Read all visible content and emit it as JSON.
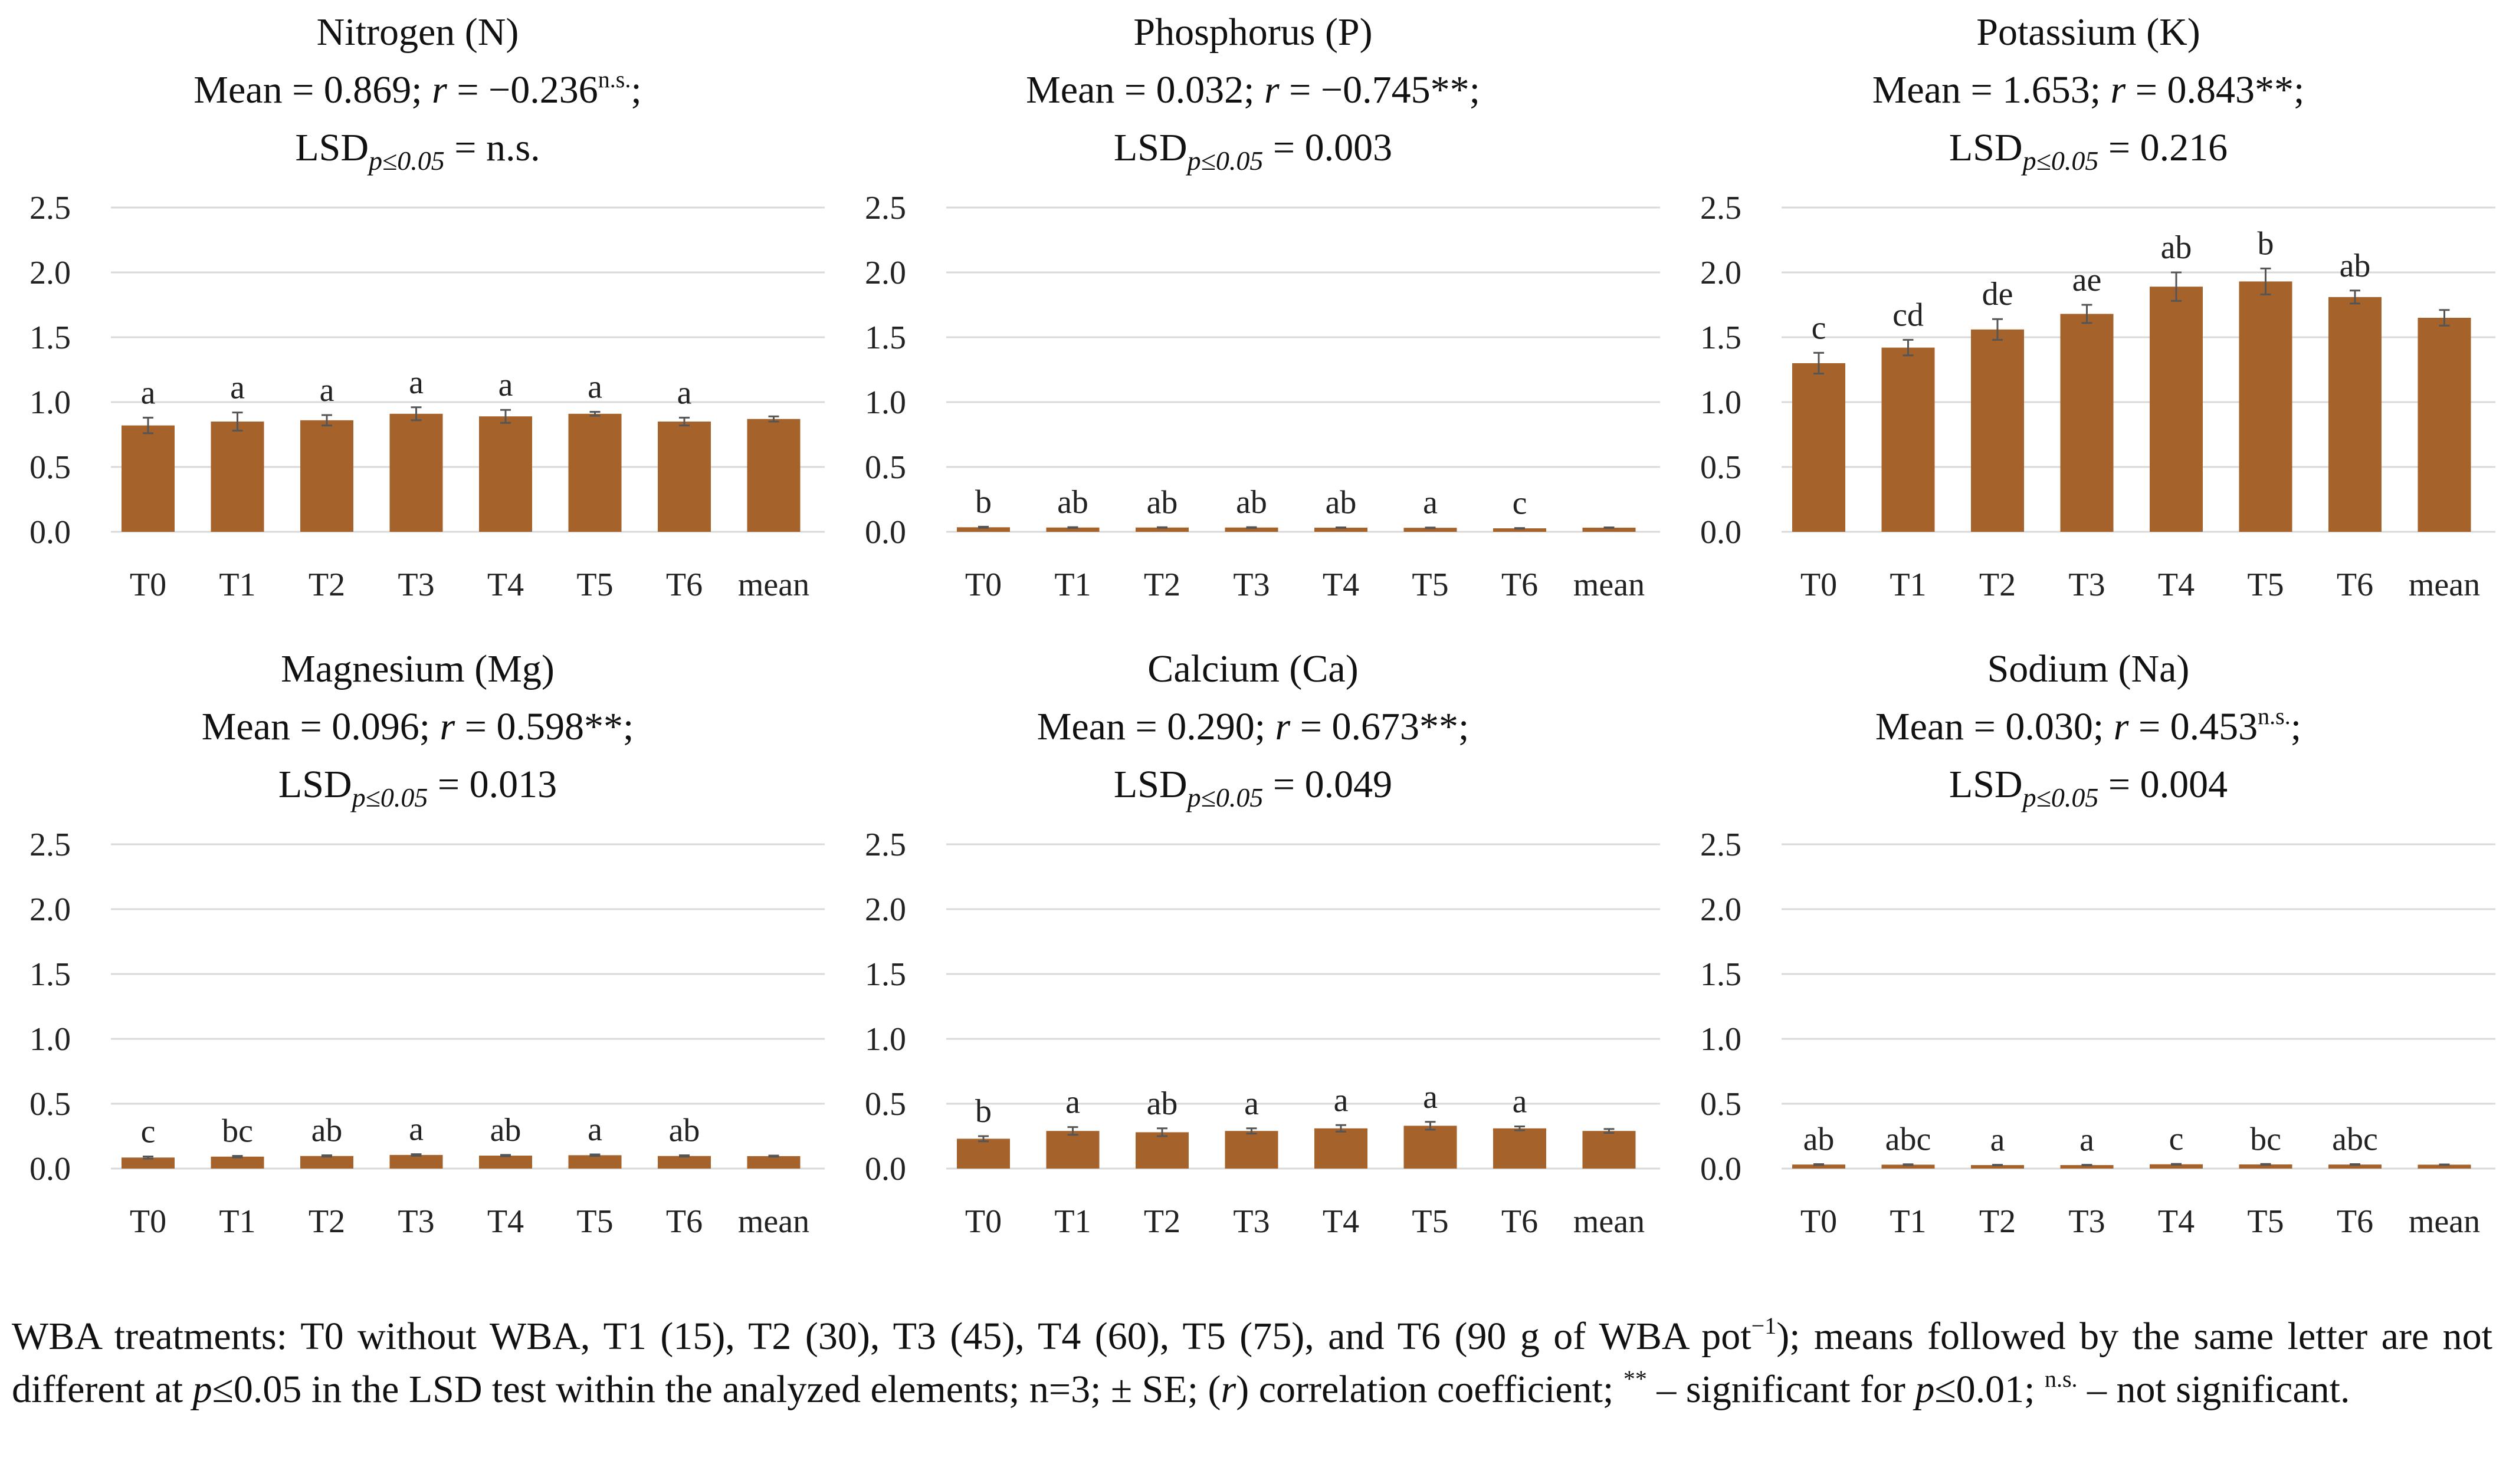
{
  "colors": {
    "bar": "#A5622A",
    "grid": "#d9d9d9",
    "error": "#555555"
  },
  "chart_data": [
    {
      "type": "bar",
      "title": "Nitrogen (N)",
      "mean_label": "Mean = 0.869;",
      "r_label": "r",
      "r_value": "= −0.236",
      "r_sup": "n.s.",
      "r_end": ";",
      "lsd_label": "LSD",
      "lsd_sub": "p≤0.05",
      "lsd_value": "= n.s.",
      "categories": [
        "T0",
        "T1",
        "T2",
        "T3",
        "T4",
        "T5",
        "T6",
        "mean"
      ],
      "values": [
        0.82,
        0.85,
        0.86,
        0.91,
        0.89,
        0.91,
        0.85,
        0.87
      ],
      "errors": [
        0.06,
        0.07,
        0.04,
        0.05,
        0.05,
        0.015,
        0.03,
        0.02
      ],
      "letters": [
        "a",
        "a",
        "a",
        "a",
        "a",
        "a",
        "a",
        ""
      ],
      "ylim": [
        0,
        2.5
      ],
      "yticks": [
        "0.0",
        "0.5",
        "1.0",
        "1.5",
        "2.0",
        "2.5"
      ]
    },
    {
      "type": "bar",
      "title": "Phosphorus (P)",
      "mean_label": "Mean = 0.032;",
      "r_label": "r",
      "r_value": "= −0.745**;",
      "r_sup": "",
      "r_end": "",
      "lsd_label": "LSD",
      "lsd_sub": "p≤0.05",
      "lsd_value": "= 0.003",
      "categories": [
        "T0",
        "T1",
        "T2",
        "T3",
        "T4",
        "T5",
        "T6",
        "mean"
      ],
      "values": [
        0.035,
        0.033,
        0.033,
        0.033,
        0.032,
        0.031,
        0.027,
        0.032
      ],
      "errors": [
        0.004,
        0.003,
        0.002,
        0.003,
        0.002,
        0.002,
        0.002,
        0.002
      ],
      "letters": [
        "b",
        "ab",
        "ab",
        "ab",
        "ab",
        "a",
        "c",
        ""
      ],
      "ylim": [
        0,
        2.5
      ],
      "yticks": [
        "0.0",
        "0.5",
        "1.0",
        "1.5",
        "2.0",
        "2.5"
      ]
    },
    {
      "type": "bar",
      "title": "Potassium (K)",
      "mean_label": "Mean = 1.653;",
      "r_label": "r",
      "r_value": "= 0.843**;",
      "r_sup": "",
      "r_end": "",
      "lsd_label": "LSD",
      "lsd_sub": "p≤0.05",
      "lsd_value": "= 0.216",
      "categories": [
        "T0",
        "T1",
        "T2",
        "T3",
        "T4",
        "T5",
        "T6",
        "mean"
      ],
      "values": [
        1.3,
        1.42,
        1.56,
        1.68,
        1.89,
        1.93,
        1.81,
        1.65
      ],
      "errors": [
        0.08,
        0.06,
        0.08,
        0.07,
        0.11,
        0.1,
        0.05,
        0.06
      ],
      "letters": [
        "c",
        "cd",
        "de",
        "ae",
        "ab",
        "b",
        "ab",
        ""
      ],
      "ylim": [
        0,
        2.5
      ],
      "yticks": [
        "0.0",
        "0.5",
        "1.0",
        "1.5",
        "2.0",
        "2.5"
      ]
    },
    {
      "type": "bar",
      "title": "Magnesium (Mg)",
      "mean_label": "Mean = 0.096;",
      "r_label": "r",
      "r_value": "= 0.598**;",
      "r_sup": "",
      "r_end": "",
      "lsd_label": "LSD",
      "lsd_sub": "p≤0.05",
      "lsd_value": "= 0.013",
      "categories": [
        "T0",
        "T1",
        "T2",
        "T3",
        "T4",
        "T5",
        "T6",
        "mean"
      ],
      "values": [
        0.085,
        0.092,
        0.097,
        0.105,
        0.1,
        0.103,
        0.097,
        0.096
      ],
      "errors": [
        0.008,
        0.006,
        0.005,
        0.006,
        0.005,
        0.006,
        0.005,
        0.004
      ],
      "letters": [
        "c",
        "bc",
        "ab",
        "a",
        "ab",
        "a",
        "ab",
        ""
      ],
      "ylim": [
        0,
        2.5
      ],
      "yticks": [
        "0.0",
        "0.5",
        "1.0",
        "1.5",
        "2.0",
        "2.5"
      ]
    },
    {
      "type": "bar",
      "title": "Calcium (Ca)",
      "mean_label": "Mean = 0.290;",
      "r_label": "r",
      "r_value": "= 0.673**;",
      "r_sup": "",
      "r_end": "",
      "lsd_label": "LSD",
      "lsd_sub": "p≤0.05",
      "lsd_value": "= 0.049",
      "categories": [
        "T0",
        "T1",
        "T2",
        "T3",
        "T4",
        "T5",
        "T6",
        "mean"
      ],
      "values": [
        0.23,
        0.29,
        0.28,
        0.29,
        0.31,
        0.33,
        0.31,
        0.29
      ],
      "errors": [
        0.02,
        0.03,
        0.03,
        0.02,
        0.025,
        0.03,
        0.015,
        0.015
      ],
      "letters": [
        "b",
        "a",
        "ab",
        "a",
        "a",
        "a",
        "a",
        ""
      ],
      "ylim": [
        0,
        2.5
      ],
      "yticks": [
        "0.0",
        "0.5",
        "1.0",
        "1.5",
        "2.0",
        "2.5"
      ]
    },
    {
      "type": "bar",
      "title": "Sodium (Na)",
      "mean_label": "Mean = 0.030;",
      "r_label": "r",
      "r_value": "= 0.453",
      "r_sup": "n.s.",
      "r_end": ";",
      "lsd_label": "LSD",
      "lsd_sub": "p≤0.05",
      "lsd_value": "= 0.004",
      "categories": [
        "T0",
        "T1",
        "T2",
        "T3",
        "T4",
        "T5",
        "T6",
        "mean"
      ],
      "values": [
        0.031,
        0.03,
        0.027,
        0.027,
        0.033,
        0.032,
        0.031,
        0.03
      ],
      "errors": [
        0.003,
        0.003,
        0.002,
        0.002,
        0.003,
        0.003,
        0.003,
        0.002
      ],
      "letters": [
        "ab",
        "abc",
        "a",
        "a",
        "c",
        "bc",
        "abc",
        ""
      ],
      "ylim": [
        0,
        2.5
      ],
      "yticks": [
        "0.0",
        "0.5",
        "1.0",
        "1.5",
        "2.0",
        "2.5"
      ]
    }
  ],
  "caption": {
    "part1": "WBA treatments: T0 without WBA, T1 (15), T2 (30), T3 (45), T4 (60), T5 (75), and T6 (90 g of WBA pot",
    "sup1": "−1",
    "part2": "); means followed by the same letter are not different at ",
    "p1": "p",
    "part3": "≤0.05 in the LSD test within the analyzed elements; n=3; ± SE; (",
    "r": "r",
    "part4": ") correlation coefficient; ",
    "sup2": "**",
    "part5": " – significant for ",
    "p2": "p",
    "part6": "≤0.01; ",
    "sup3": "n.s.",
    "part7": " – not significant."
  }
}
